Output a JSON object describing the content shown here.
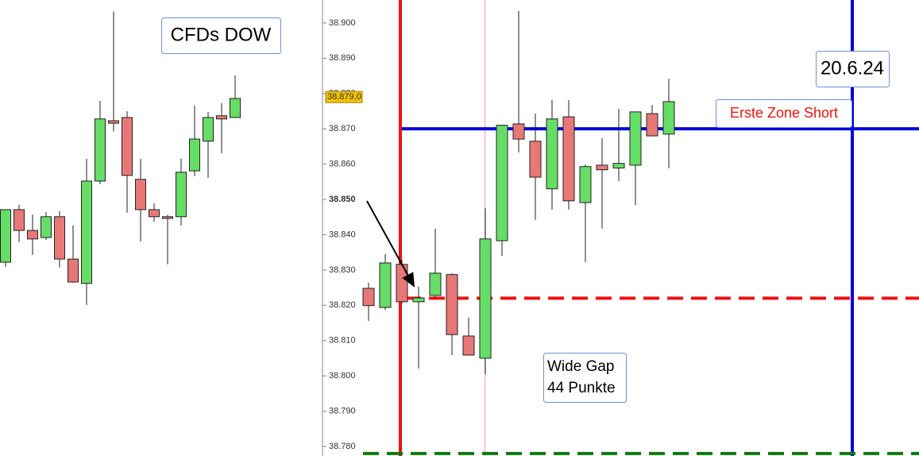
{
  "chart_data": [
    {
      "type": "candlestick",
      "title": "CFDs DOW",
      "up_color": "#66dd66",
      "down_color": "#e87878",
      "open": [
        38832.2,
        38847.1,
        38841.2,
        38839.2,
        38845.1,
        38833.1,
        38826.2,
        38855.2,
        38872.3,
        38873.2,
        38855.7,
        38847.1,
        38845.1,
        38845.1,
        38858.1,
        38866.5,
        38873.7,
        38873.2
      ],
      "high": [
        38847.1,
        38848.5,
        38845.7,
        38846.4,
        38846.7,
        38842.6,
        38861.5,
        38877.9,
        38903.2,
        38875.0,
        38861.5,
        38848.9,
        38845.7,
        38861.5,
        38876.6,
        38874.8,
        38877.3,
        38885.1
      ],
      "low": [
        38830.9,
        38837.9,
        38834.3,
        38838.5,
        38830.7,
        38826.4,
        38820.1,
        38854.3,
        38869.2,
        38846.2,
        38838.1,
        38843.7,
        38831.6,
        38842.6,
        38856.6,
        38856.1,
        38863.1,
        38873.2
      ],
      "close": [
        38847.1,
        38841.2,
        38838.8,
        38845.1,
        38833.1,
        38826.6,
        38855.2,
        38872.8,
        38871.6,
        38856.8,
        38847.1,
        38845.1,
        38844.6,
        38857.7,
        38867.1,
        38873.2,
        38872.8,
        38878.6
      ]
    },
    {
      "type": "candlestick",
      "up_color": "#66dd66",
      "down_color": "#e87878",
      "open": [
        38824.8,
        38819.4,
        38831.6,
        38821.0,
        38822.8,
        38828.7,
        38811.3,
        38805.0,
        38838.3,
        38871.4,
        38866.5,
        38853.0,
        38873.4,
        38849.1,
        38859.7,
        38858.9,
        38859.7,
        38874.3,
        38868.5
      ],
      "high": [
        38826.4,
        38834.5,
        38832.9,
        38825.3,
        38841.7,
        38829.1,
        38816.5,
        38847.5,
        38871.2,
        38903.4,
        38874.3,
        38878.2,
        38878.2,
        38859.9,
        38867.4,
        38875.7,
        38874.8,
        38876.8,
        38884.2
      ],
      "low": [
        38815.6,
        38818.7,
        38820.5,
        38802.1,
        38822.1,
        38805.9,
        38805.9,
        38800.5,
        38834.0,
        38863.3,
        38844.2,
        38847.1,
        38847.1,
        38832.2,
        38841.7,
        38855.2,
        38848.4,
        38868.0,
        38858.8
      ],
      "close": [
        38819.9,
        38832.0,
        38821.0,
        38822.1,
        38829.1,
        38811.7,
        38805.9,
        38838.8,
        38871.0,
        38867.1,
        38856.3,
        38872.8,
        38849.6,
        38859.3,
        38858.4,
        38860.2,
        38874.8,
        38868.0,
        38877.7
      ],
      "ylim": [
        38777.3,
        38906.5
      ],
      "yticks": [
        {
          "value": 38780,
          "label": "38.780"
        },
        {
          "value": 38790,
          "label": "38.790"
        },
        {
          "value": 38800,
          "label": "38.800"
        },
        {
          "value": 38810,
          "label": "38.810"
        },
        {
          "value": 38820,
          "label": "38.820"
        },
        {
          "value": 38830,
          "label": "38.830"
        },
        {
          "value": 38840,
          "label": "38.840"
        },
        {
          "value": 38850,
          "label": "38.850"
        },
        {
          "value": 38860,
          "label": "38.860"
        },
        {
          "value": 38870,
          "label": "38.870"
        },
        {
          "value": 38880,
          "label": "38.880"
        },
        {
          "value": 38890,
          "label": "38.890"
        },
        {
          "value": 38900,
          "label": "38.900"
        }
      ],
      "last_price": {
        "value": 38879,
        "label": "38.879,0"
      },
      "hlines": [
        {
          "value": 38870,
          "color": "#0000dd",
          "dashed": false
        },
        {
          "value": 38822,
          "color": "#ee1111",
          "dashed": true
        },
        {
          "value": 38778,
          "color": "#117711",
          "dashed": true
        }
      ],
      "annotations": {
        "date": "20.6.24",
        "zone": "Erste Zone Short",
        "gap": [
          "Wide Gap",
          "44 Punkte"
        ]
      }
    }
  ]
}
